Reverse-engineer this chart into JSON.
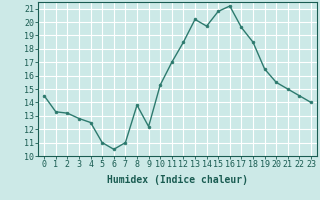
{
  "x": [
    0,
    1,
    2,
    3,
    4,
    5,
    6,
    7,
    8,
    9,
    10,
    11,
    12,
    13,
    14,
    15,
    16,
    17,
    18,
    19,
    20,
    21,
    22,
    23
  ],
  "y": [
    14.5,
    13.3,
    13.2,
    12.8,
    12.5,
    11.0,
    10.5,
    11.0,
    13.8,
    12.2,
    15.3,
    17.0,
    18.5,
    20.2,
    19.7,
    20.8,
    21.2,
    19.6,
    18.5,
    16.5,
    15.5,
    15.0,
    14.5,
    14.0
  ],
  "line_color": "#2d7a6e",
  "marker": "o",
  "marker_size": 2,
  "bg_color": "#cce9e7",
  "grid_color": "#ffffff",
  "xlabel": "Humidex (Indice chaleur)",
  "ylim": [
    10,
    21.5
  ],
  "xlim": [
    -0.5,
    23.5
  ],
  "yticks": [
    10,
    11,
    12,
    13,
    14,
    15,
    16,
    17,
    18,
    19,
    20,
    21
  ],
  "xticks": [
    0,
    1,
    2,
    3,
    4,
    5,
    6,
    7,
    8,
    9,
    10,
    11,
    12,
    13,
    14,
    15,
    16,
    17,
    18,
    19,
    20,
    21,
    22,
    23
  ],
  "title_color": "#1a5c52",
  "label_fontsize": 7,
  "tick_fontsize": 6
}
